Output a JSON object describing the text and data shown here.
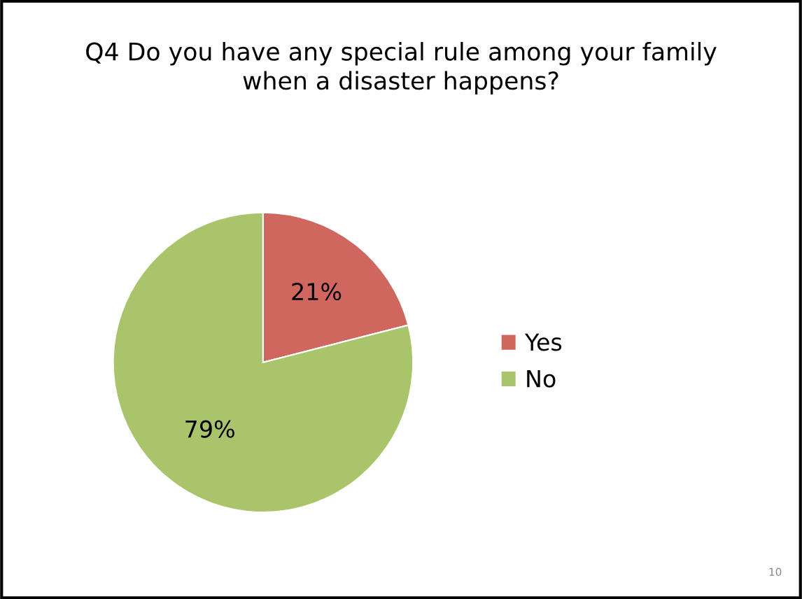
{
  "chart_data": {
    "type": "pie",
    "title": "Q4 Do you have any special rule among your family\nwhen a disaster happens?",
    "categories": [
      "Yes",
      "No"
    ],
    "values": [
      21,
      79
    ],
    "colors": [
      "#cf675e",
      "#a9c46a"
    ],
    "value_labels": [
      "21%",
      "79%"
    ],
    "legend": "right",
    "annotations": [
      "10"
    ]
  }
}
